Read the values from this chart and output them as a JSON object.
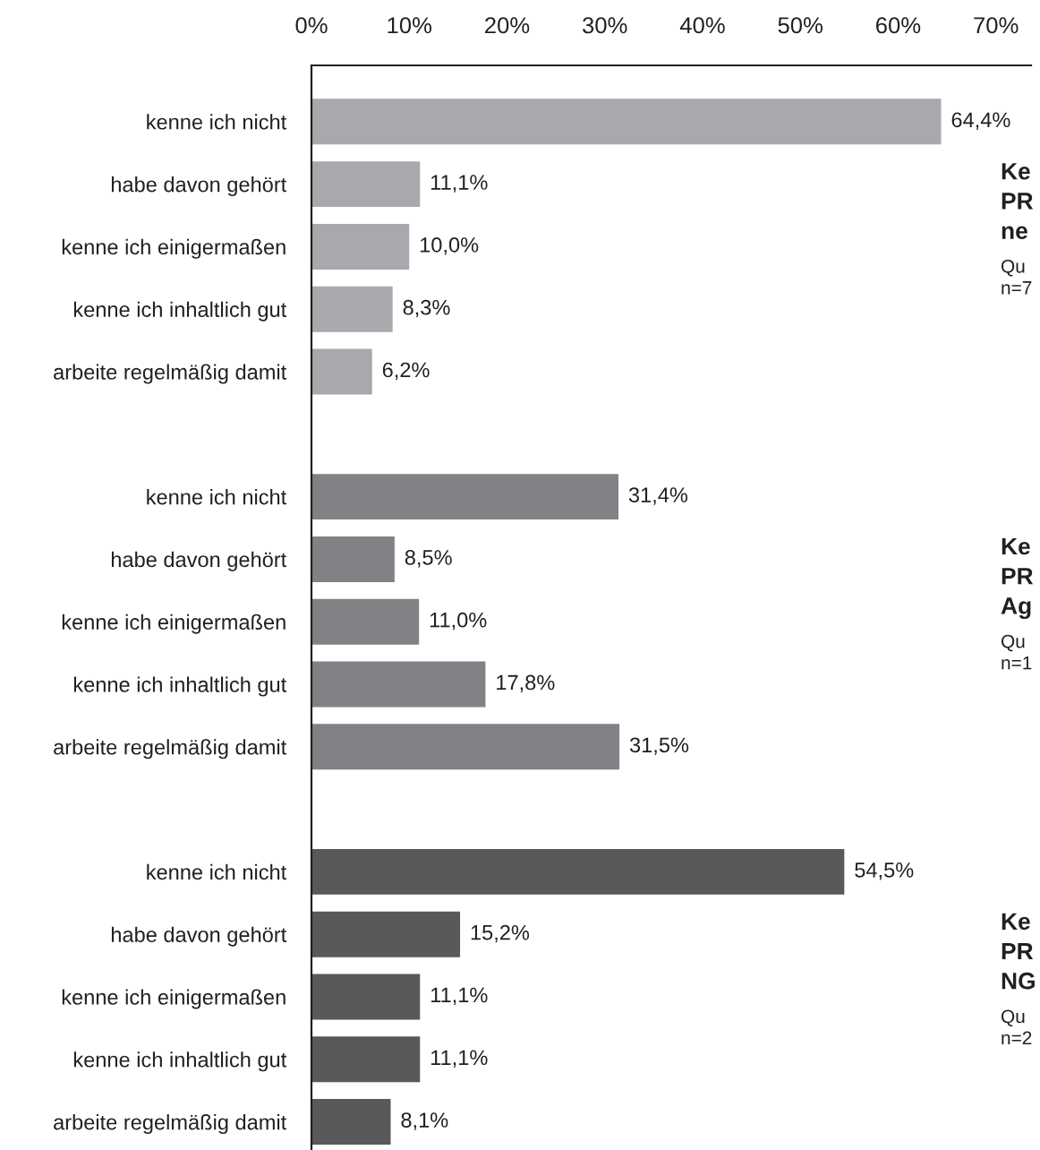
{
  "chart_data": {
    "type": "bar",
    "orientation": "horizontal",
    "categories": [
      "kenne ich nicht",
      "habe davon gehört",
      "kenne ich einigermaßen",
      "kenne ich inhaltlich gut",
      "arbeite regelmäßig damit",
      null,
      "kenne ich nicht",
      "habe davon gehört",
      "kenne ich einigermaßen",
      "kenne ich inhaltlich gut",
      "arbeite regelmäßig damit",
      null,
      "kenne ich nicht",
      "habe davon gehört",
      "kenne ich einigermaßen",
      "kenne ich inhaltlich gut",
      "arbeite regelmäßig damit"
    ],
    "values": [
      64.4,
      11.1,
      10.0,
      8.3,
      6.2,
      null,
      31.4,
      8.5,
      11.0,
      17.8,
      31.5,
      null,
      54.5,
      15.2,
      11.1,
      11.1,
      8.1
    ],
    "colors": [
      "#a7a9ac",
      "#a7a9ac",
      "#a7a9ac",
      "#a7a9ac",
      "#a7a9ac",
      null,
      "#808285",
      "#808285",
      "#808285",
      "#808285",
      "#808285",
      null,
      "#58595b",
      "#58595b",
      "#58595b",
      "#58595b",
      "#58595b"
    ],
    "value_labels": [
      "64,4%",
      "11,1%",
      "10,0%",
      "8,3%",
      "6,2%",
      null,
      "31,4%",
      "8,5%",
      "11,0%",
      "17,8%",
      "31,5%",
      null,
      "54,5%",
      "15,2%",
      "11,1%",
      "11,1%",
      "8,1%"
    ],
    "xlim": [
      0,
      73.6
    ],
    "xticks": [
      {
        "value": 0,
        "label": "0%"
      },
      {
        "value": 10,
        "label": "10%"
      },
      {
        "value": 20,
        "label": "20%"
      },
      {
        "value": 30,
        "label": "30%"
      },
      {
        "value": 40,
        "label": "40%"
      },
      {
        "value": 50,
        "label": "50%"
      },
      {
        "value": 60,
        "label": "60%"
      },
      {
        "value": 70,
        "label": "70%"
      }
    ],
    "annotations": [
      "Ke\nPR\nne",
      "Qu\nn=7",
      "Ke\nPR\nAg",
      "Qu\nn=1",
      "Ke\nPR\nNG",
      "Qu\nn=2"
    ],
    "grid": false,
    "legend": false
  }
}
